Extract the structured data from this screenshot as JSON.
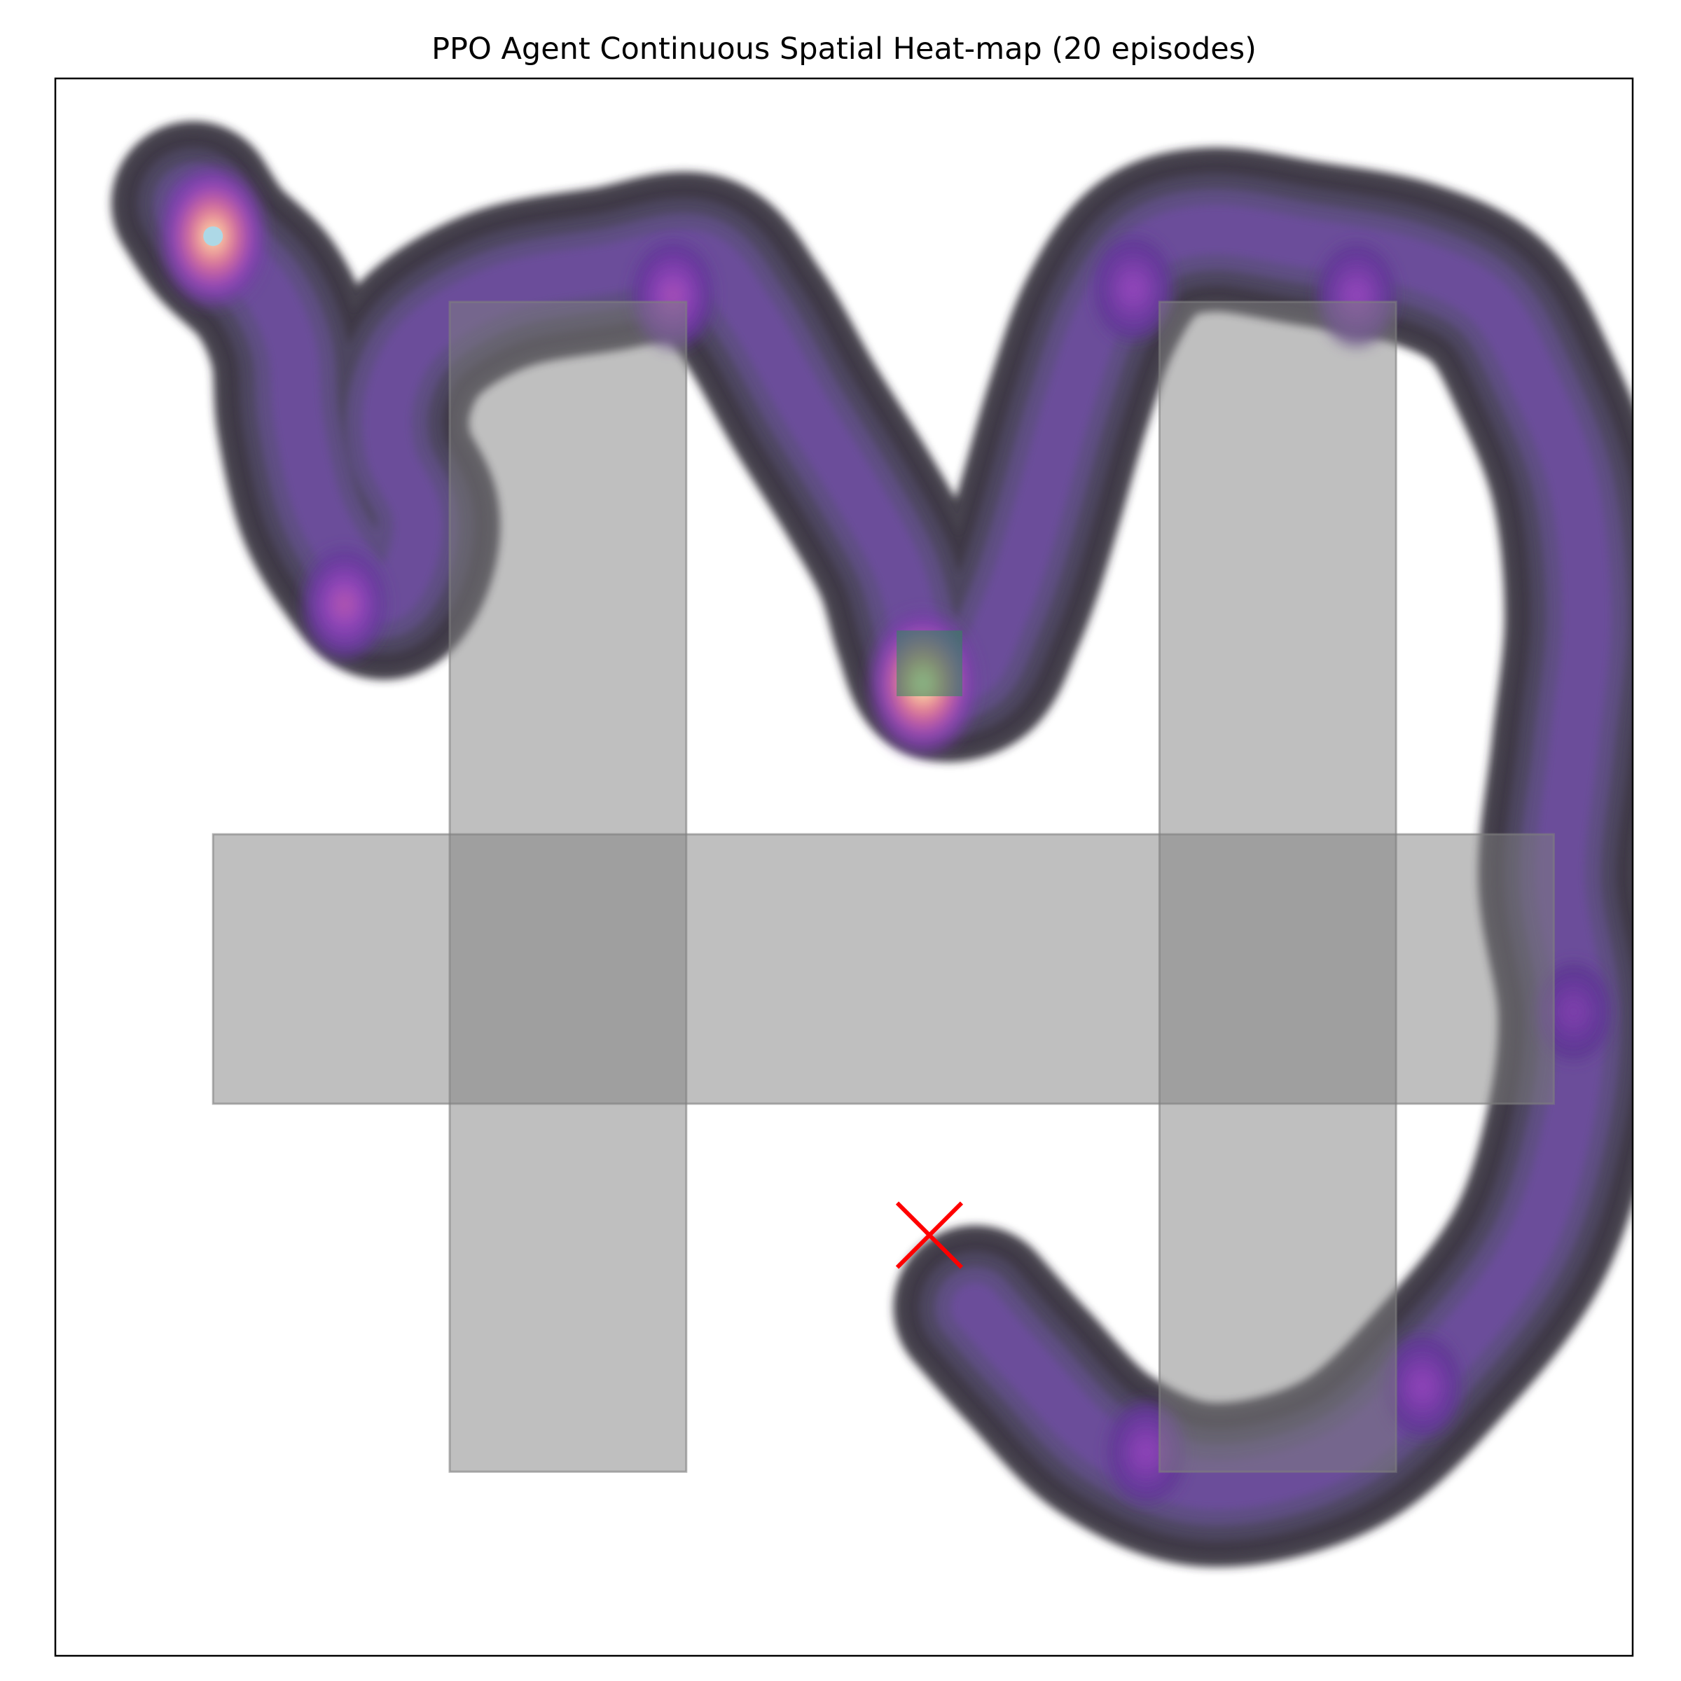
{
  "chart_data": {
    "type": "heatmap",
    "title": "PPO Agent Continuous Spatial Heat-map (20 episodes)",
    "xlabel": "",
    "ylabel": "",
    "xlim": [
      0,
      12
    ],
    "ylim": [
      0,
      12
    ],
    "grid": false,
    "colormap": "magma",
    "colors": {
      "obstacle": "#7f7f7f",
      "goal_marker": "#ff0000",
      "start_marker": "#add8e6",
      "green_patch": "#2e8b57",
      "frame": "#000000"
    },
    "obstacles": [
      {
        "x": [
          3.0,
          4.8
        ],
        "y": [
          1.4,
          10.3
        ]
      },
      {
        "x": [
          1.2,
          11.4
        ],
        "y": [
          4.2,
          6.25
        ]
      },
      {
        "x": [
          8.4,
          10.2
        ],
        "y": [
          1.4,
          10.3
        ]
      }
    ],
    "highlight_cell": {
      "x": [
        6.4,
        6.9
      ],
      "y": [
        7.3,
        7.8
      ]
    },
    "goal": {
      "x": 6.65,
      "y": 3.2
    },
    "start": {
      "x": 1.2,
      "y": 10.8
    },
    "trajectory_path": [
      [
        1.05,
        11.05
      ],
      [
        1.25,
        10.75
      ],
      [
        1.6,
        10.4
      ],
      [
        1.8,
        9.95
      ],
      [
        1.85,
        9.4
      ],
      [
        2.0,
        8.75
      ],
      [
        2.25,
        8.3
      ],
      [
        2.5,
        8.05
      ],
      [
        2.7,
        8.3
      ],
      [
        2.75,
        8.7
      ],
      [
        2.55,
        9.15
      ],
      [
        2.55,
        9.6
      ],
      [
        2.8,
        10.05
      ],
      [
        3.4,
        10.4
      ],
      [
        4.2,
        10.55
      ],
      [
        4.9,
        10.65
      ],
      [
        5.3,
        10.2
      ],
      [
        5.7,
        9.5
      ],
      [
        6.1,
        8.85
      ],
      [
        6.4,
        8.3
      ],
      [
        6.55,
        7.8
      ],
      [
        6.7,
        7.45
      ],
      [
        7.0,
        7.5
      ],
      [
        7.2,
        7.9
      ],
      [
        7.35,
        8.3
      ],
      [
        7.5,
        8.8
      ],
      [
        7.7,
        9.5
      ],
      [
        7.95,
        10.2
      ],
      [
        8.3,
        10.7
      ],
      [
        8.8,
        10.85
      ],
      [
        9.5,
        10.75
      ],
      [
        10.3,
        10.6
      ],
      [
        10.9,
        10.3
      ],
      [
        11.25,
        9.7
      ],
      [
        11.55,
        8.9
      ],
      [
        11.65,
        7.9
      ],
      [
        11.55,
        6.9
      ],
      [
        11.45,
        5.9
      ],
      [
        11.6,
        4.9
      ],
      [
        11.5,
        4.0
      ],
      [
        11.2,
        3.1
      ],
      [
        10.6,
        2.3
      ],
      [
        9.8,
        1.55
      ],
      [
        8.8,
        1.3
      ],
      [
        8.0,
        1.6
      ],
      [
        7.4,
        2.2
      ],
      [
        7.0,
        2.65
      ]
    ],
    "hotspots": [
      {
        "x": 1.2,
        "y": 10.8,
        "value": 0.95
      },
      {
        "x": 2.2,
        "y": 8.0,
        "value": 0.45
      },
      {
        "x": 4.7,
        "y": 10.35,
        "value": 0.4
      },
      {
        "x": 6.6,
        "y": 7.4,
        "value": 1.0
      },
      {
        "x": 8.2,
        "y": 10.4,
        "value": 0.32
      },
      {
        "x": 9.9,
        "y": 10.35,
        "value": 0.32
      },
      {
        "x": 11.55,
        "y": 4.9,
        "value": 0.22
      },
      {
        "x": 10.4,
        "y": 2.05,
        "value": 0.3
      },
      {
        "x": 8.3,
        "y": 1.55,
        "value": 0.3
      }
    ]
  }
}
